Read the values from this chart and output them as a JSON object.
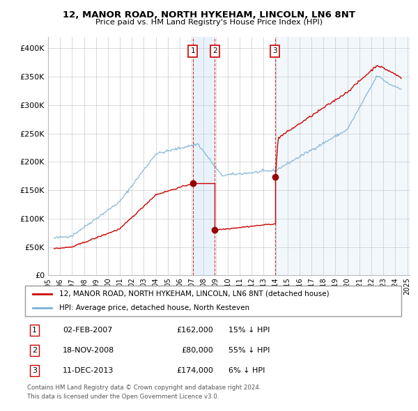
{
  "title": "12, MANOR ROAD, NORTH HYKEHAM, LINCOLN, LN6 8NT",
  "subtitle": "Price paid vs. HM Land Registry's House Price Index (HPI)",
  "transactions": [
    {
      "num": 1,
      "date_label": "02-FEB-2007",
      "price": 162000,
      "pct": "15%",
      "x_year": 2007.09
    },
    {
      "num": 2,
      "date_label": "18-NOV-2008",
      "price": 80000,
      "pct": "55%",
      "x_year": 2008.92
    },
    {
      "num": 3,
      "date_label": "11-DEC-2013",
      "price": 174000,
      "pct": "6%",
      "x_year": 2013.95
    }
  ],
  "legend_red": "12, MANOR ROAD, NORTH HYKEHAM, LINCOLN, LN6 8NT (detached house)",
  "legend_blue": "HPI: Average price, detached house, North Kesteven",
  "footnote1": "Contains HM Land Registry data © Crown copyright and database right 2024.",
  "footnote2": "This data is licensed under the Open Government Licence v3.0.",
  "red_color": "#cc0000",
  "blue_color": "#7ab0d4",
  "shade_color": "#ddeeff",
  "background_color": "#ffffff",
  "grid_color": "#cccccc",
  "ylim": [
    0,
    420000
  ],
  "xlim": [
    1995.5,
    2025.2
  ],
  "transaction_dot_color": "#990000"
}
